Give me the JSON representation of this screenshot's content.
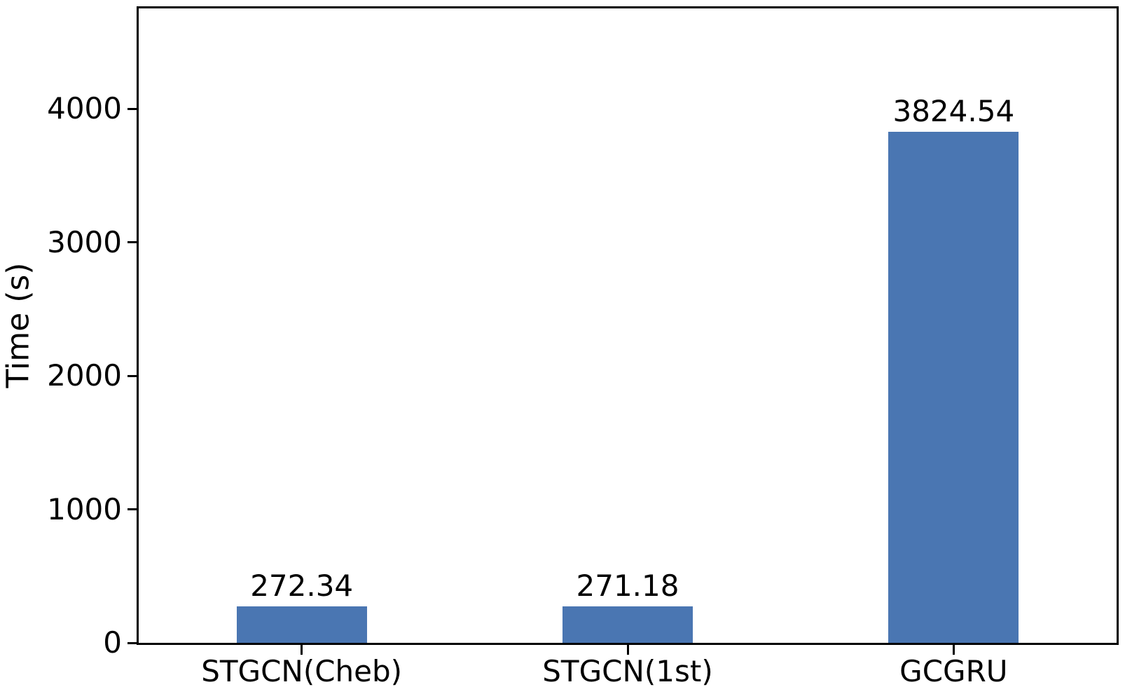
{
  "chart_data": {
    "type": "bar",
    "title": "",
    "xlabel": "",
    "ylabel": "Time (s)",
    "categories": [
      "STGCN(Cheb)",
      "STGCN(1st)",
      "GCGRU"
    ],
    "values": [
      272.34,
      271.18,
      3824.54
    ],
    "value_labels": [
      "272.34",
      "271.18",
      "3824.54"
    ],
    "yticks": [
      0,
      1000,
      2000,
      3000,
      4000
    ],
    "ytick_labels": [
      "0",
      "1000",
      "2000",
      "3000",
      "4000"
    ],
    "ylim": [
      0,
      4751
    ],
    "bar_color": "#4a76b2",
    "axis_color": "#000000",
    "text_color": "#000000",
    "grid": false,
    "legend": null,
    "bar_width_fraction": 0.1333
  }
}
